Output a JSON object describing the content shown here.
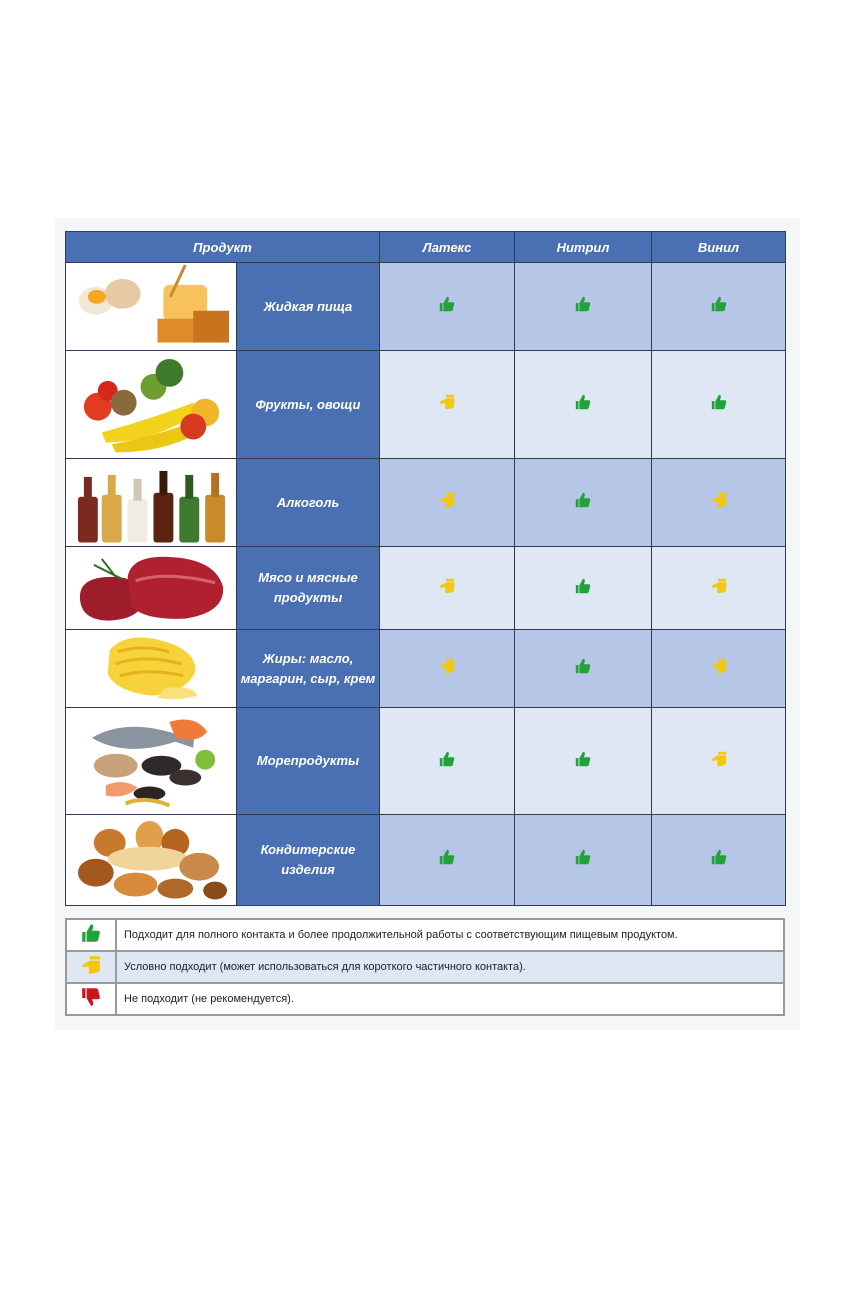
{
  "header": {
    "product": "Продукт",
    "latex": "Латекс",
    "nitrile": "Нитрил",
    "vinyl": "Винил"
  },
  "rows": [
    {
      "name": "Жидкая пища",
      "image": "eggs-honey-image",
      "latex": "good",
      "nitrile": "good",
      "vinyl": "good"
    },
    {
      "name": "Фрукты, овощи",
      "image": "fruits-vegetables-image",
      "latex": "conditional",
      "nitrile": "good",
      "vinyl": "good"
    },
    {
      "name": "Алкоголь",
      "image": "bottles-image",
      "latex": "conditional",
      "nitrile": "good",
      "vinyl": "conditional"
    },
    {
      "name": "Мясо и мясные продукты",
      "image": "meat-image",
      "latex": "conditional",
      "nitrile": "good",
      "vinyl": "conditional"
    },
    {
      "name": "Жиры: масло, маргарин, сыр, крем",
      "image": "butter-image",
      "latex": "conditional",
      "nitrile": "good",
      "vinyl": "conditional"
    },
    {
      "name": "Морепродукты",
      "image": "seafood-image",
      "latex": "good",
      "nitrile": "good",
      "vinyl": "conditional"
    },
    {
      "name": "Кондитерские изделия",
      "image": "pastry-image",
      "latex": "good",
      "nitrile": "good",
      "vinyl": "good"
    }
  ],
  "legend": [
    {
      "icon": "thumbs-up-icon",
      "text": "Подходит для полного контакта и более продолжительной работы с соответствующим пищевым продуктом."
    },
    {
      "icon": "thumbs-sideways-icon",
      "text": "Условно подходит (может использоваться для короткого частичного контакта)."
    },
    {
      "icon": "thumbs-down-icon",
      "text": "Не подходит (не рекомендуется)."
    }
  ],
  "colors": {
    "header_blue": "#4a6fb3",
    "good": "#22a33a",
    "conditional": "#f2c80f",
    "bad": "#c8161d"
  }
}
